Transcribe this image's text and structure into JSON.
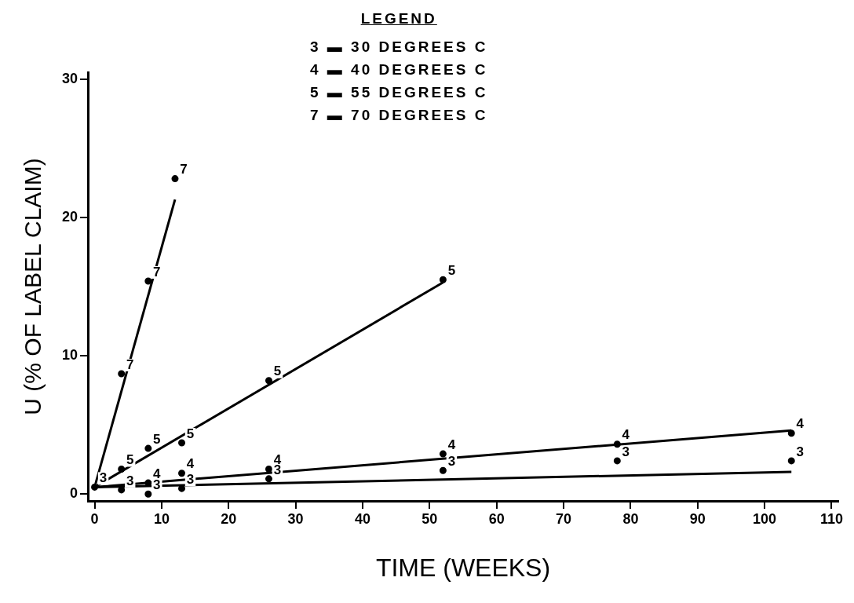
{
  "chart_data": {
    "type": "scatter",
    "xlabel": "TIME (WEEKS)",
    "ylabel": "U (% OF LABEL CLAIM)",
    "grid": false,
    "marker": "circle",
    "xlim": [
      -1,
      111
    ],
    "xticks": [
      0,
      10,
      20,
      30,
      40,
      50,
      60,
      70,
      80,
      90,
      100,
      110
    ],
    "ylim": [
      -0.5,
      30.5
    ],
    "yticks": [
      0,
      10,
      20,
      30
    ],
    "series": [
      {
        "color": "#000000",
        "x": [
          0,
          4,
          8,
          13,
          26,
          52,
          78,
          104
        ],
        "values": [
          0.5,
          0.3,
          0,
          0.4,
          1.1,
          1.7,
          2.4,
          2.4
        ]
      },
      {
        "color": "#000000",
        "x": [
          8,
          13,
          26,
          52,
          78,
          104
        ],
        "values": [
          0.8,
          1.5,
          1.8,
          2.9,
          3.6,
          4.4
        ]
      },
      {
        "color": "#000000",
        "x": [
          4,
          8,
          13,
          26,
          52
        ],
        "values": [
          1.8,
          3.3,
          3.7,
          8.2,
          15.5
        ]
      },
      {
        "color": "#000000",
        "x": [
          4,
          8,
          12
        ],
        "values": [
          8.7,
          15.4,
          22.8
        ]
      },
      {
        "type": "line",
        "marker": "none",
        "color": "#000000",
        "x": [
          0,
          104
        ],
        "values": [
          0.5,
          1.6
        ]
      },
      {
        "type": "line",
        "marker": "none",
        "color": "#000000",
        "x": [
          0,
          104
        ],
        "values": [
          0.5,
          4.6
        ]
      },
      {
        "type": "line",
        "marker": "none",
        "color": "#000000",
        "x": [
          0,
          52
        ],
        "values": [
          0.5,
          15.3
        ]
      },
      {
        "type": "line",
        "marker": "none",
        "color": "#000000",
        "x": [
          0,
          12
        ],
        "values": [
          0.5,
          21.3
        ]
      }
    ],
    "annotations": [
      "LEGEND",
      "3 ▬ 30 DEGREES C",
      "4 ▬ 40 DEGREES C",
      "5 ▬ 55 DEGREES C",
      "7 ▬ 70 DEGREES C",
      {
        "text": "3",
        "x": 0,
        "y": 0.5
      },
      {
        "text": "3",
        "x": 4,
        "y": 0.3
      },
      {
        "text": "3",
        "x": 8,
        "y": 0
      },
      {
        "text": "3",
        "x": 13,
        "y": 0.4
      },
      {
        "text": "3",
        "x": 26,
        "y": 1.1
      },
      {
        "text": "3",
        "x": 52,
        "y": 1.7
      },
      {
        "text": "3",
        "x": 78,
        "y": 2.4
      },
      {
        "text": "3",
        "x": 104,
        "y": 2.4
      },
      {
        "text": "4",
        "x": 8,
        "y": 0.8
      },
      {
        "text": "4",
        "x": 13,
        "y": 1.5
      },
      {
        "text": "4",
        "x": 26,
        "y": 1.8
      },
      {
        "text": "4",
        "x": 52,
        "y": 2.9
      },
      {
        "text": "4",
        "x": 78,
        "y": 3.6
      },
      {
        "text": "4",
        "x": 104,
        "y": 4.4
      },
      {
        "text": "5",
        "x": 4,
        "y": 1.8
      },
      {
        "text": "5",
        "x": 8,
        "y": 3.3
      },
      {
        "text": "5",
        "x": 13,
        "y": 3.7
      },
      {
        "text": "5",
        "x": 26,
        "y": 8.2
      },
      {
        "text": "5",
        "x": 52,
        "y": 15.5
      },
      {
        "text": "7",
        "x": 4,
        "y": 8.7
      },
      {
        "text": "7",
        "x": 8,
        "y": 15.4
      },
      {
        "text": "7",
        "x": 12,
        "y": 22.8
      }
    ]
  }
}
